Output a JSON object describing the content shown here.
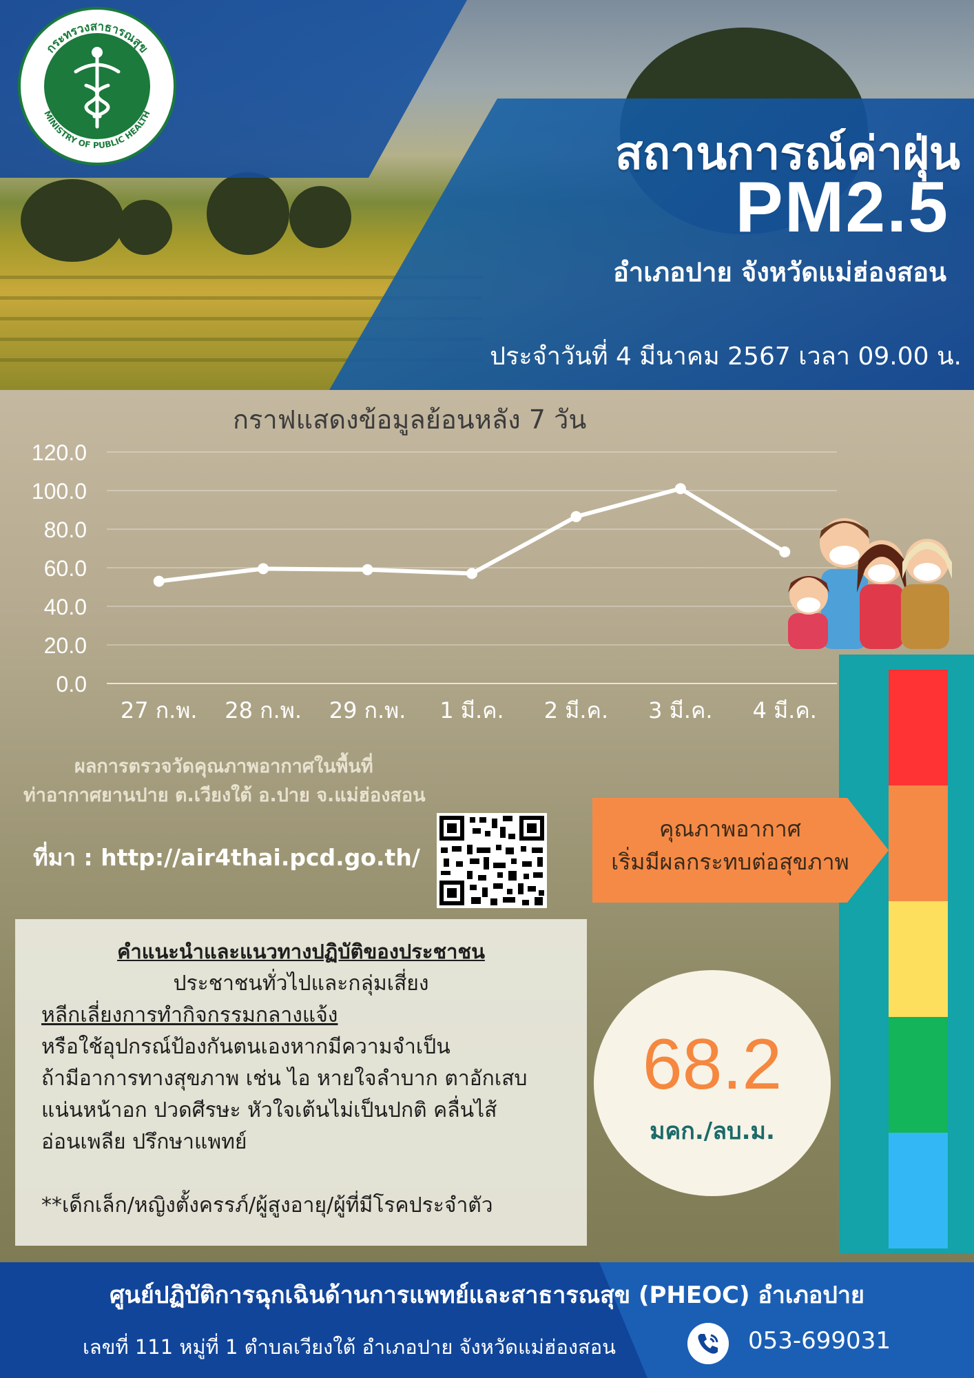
{
  "header": {
    "logo_text": "กระทรวงสาธารณสุข MINISTRY OF PUBLIC HEALTH",
    "title": "สถานการณ์ค่าฝุ่น",
    "title_pm": "PM2.5",
    "location": "อำเภอปาย จังหวัดแม่ฮ่องสอน",
    "date": "ประจำวันที่ 4 มีนาคม 2567 เวลา 09.00 น."
  },
  "chart_data": {
    "type": "line",
    "title": "กราฟแสดงข้อมูลย้อนหลัง 7 วัน",
    "categories": [
      "27 ก.พ.",
      "28 ก.พ.",
      "29 ก.พ.",
      "1 มี.ค.",
      "2 มี.ค.",
      "3 มี.ค.",
      "4 มี.ค."
    ],
    "values": [
      53,
      59.5,
      59,
      57,
      86.5,
      101,
      68.2
    ],
    "ylim": [
      0,
      120
    ],
    "yticks": [
      "0.0",
      "20.0",
      "40.0",
      "60.0",
      "80.0",
      "100.0",
      "120.0"
    ],
    "grid": true,
    "color": "#ffffff"
  },
  "measurement": {
    "line1": "ผลการตรวจวัดคุณภาพอากาศในพื้นที่",
    "line2": "ท่าอากาศยานปาย ต.เวียงใต้ อ.ปาย จ.แม่ฮ่องสอน"
  },
  "source": "ที่มา : http://air4thai.pcd.go.th/",
  "quality": {
    "line1": "คุณภาพอากาศ",
    "line2": "เริ่มมีผลกระทบต่อสุขภาพ",
    "color": "#f58a46"
  },
  "scale_colors": [
    "#ff3333",
    "#f58a46",
    "#fedf5d",
    "#13b45a",
    "#33b8f5"
  ],
  "advice": {
    "title": "คำแนะนำและแนวทางปฏิบัติของประชาชน",
    "subtitle": "ประชาชนทั่วไปและกลุ่มเสี่ยง",
    "line1": "หลีกเลี่ยงการทำกิจกรรมกลางแจ้ง",
    "line2": "หรือใช้อุปกรณ์ป้องกันตนเองหากมีความจำเป็น",
    "line3": "ถ้ามีอาการทางสุขภาพ เช่น ไอ หายใจลำบาก ตาอักเสบ",
    "line4": "แน่นหน้าอก ปวดศีรษะ หัวใจเต้นไม่เป็นปกติ คลื่นไส้",
    "line5": "อ่อนเพลีย ปรึกษาแพทย์",
    "note": "**เด็กเล็ก/หญิงตั้งครรภ์/ผู้สูงอายุ/ผู้ที่มีโรคประจำตัว"
  },
  "current": {
    "value": "68.2",
    "unit": "มคก./ลบ.ม."
  },
  "footer": {
    "title": "ศูนย์ปฏิบัติการฉุกเฉินด้านการแพทย์และสาธารณสุข (PHEOC) อำเภอปาย",
    "address": "เลขที่ 111 หมู่ที่ 1 ตำบลเวียงใต้ อำเภอปาย จังหวัดแม่ฮ่องสอน",
    "phone": "053-699031"
  }
}
